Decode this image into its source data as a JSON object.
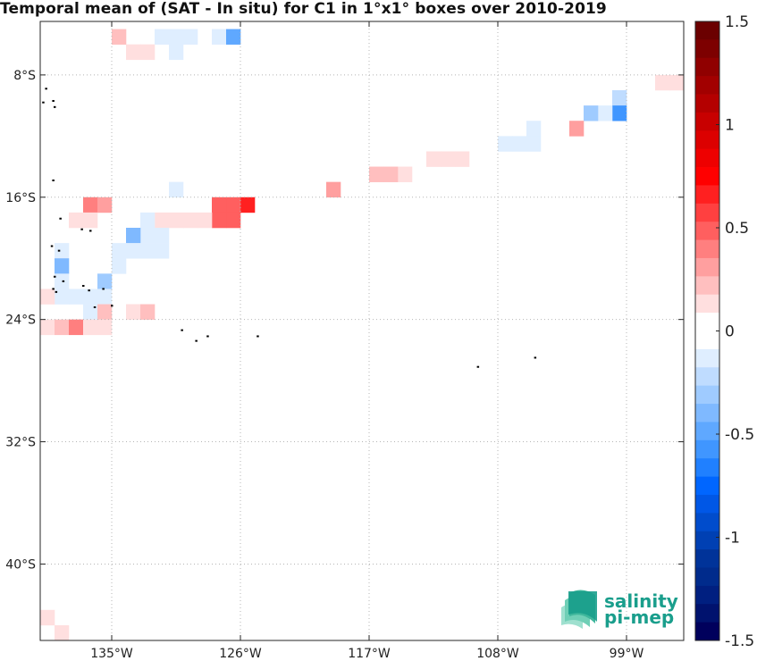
{
  "title": "Temporal mean of (SAT - In situ) for C1 in 1°x1° boxes over 2010-2019",
  "map": {
    "lon_range": [
      -140,
      -95
    ],
    "lat_range": [
      -45,
      -4.5
    ],
    "lon_ticks": [
      {
        "value": -135,
        "label": "135°W"
      },
      {
        "value": -126,
        "label": "126°W"
      },
      {
        "value": -117,
        "label": "117°W"
      },
      {
        "value": -108,
        "label": "108°W"
      },
      {
        "value": -99,
        "label": "99°W"
      }
    ],
    "lat_ticks": [
      {
        "value": -8,
        "label": "8°S"
      },
      {
        "value": -16,
        "label": "16°S"
      },
      {
        "value": -24,
        "label": "24°S"
      },
      {
        "value": -32,
        "label": "32°S"
      },
      {
        "value": -40,
        "label": "40°S"
      }
    ],
    "grid": true,
    "cells": [
      {
        "lon": -134.5,
        "lat": -5.5,
        "v": 0.25
      },
      {
        "lon": -133.5,
        "lat": -6.5,
        "v": 0.15
      },
      {
        "lon": -132.5,
        "lat": -6.5,
        "v": 0.15
      },
      {
        "lon": -131.5,
        "lat": -5.5,
        "v": -0.1
      },
      {
        "lon": -130.5,
        "lat": -5.5,
        "v": -0.1
      },
      {
        "lon": -129.5,
        "lat": -5.5,
        "v": -0.1
      },
      {
        "lon": -130.5,
        "lat": -6.5,
        "v": -0.1
      },
      {
        "lon": -127.5,
        "lat": -5.5,
        "v": -0.1
      },
      {
        "lon": -126.5,
        "lat": -5.5,
        "v": -0.5
      },
      {
        "lon": -95.5,
        "lat": -8.5,
        "v": 0.15
      },
      {
        "lon": -96.5,
        "lat": -8.5,
        "v": 0.15
      },
      {
        "lon": -99.5,
        "lat": -9.5,
        "v": -0.2
      },
      {
        "lon": -99.5,
        "lat": -10.5,
        "v": -0.6
      },
      {
        "lon": -100.5,
        "lat": -10.5,
        "v": -0.15
      },
      {
        "lon": -101.5,
        "lat": -10.5,
        "v": -0.3
      },
      {
        "lon": -102.5,
        "lat": -11.5,
        "v": 0.35
      },
      {
        "lon": -105.5,
        "lat": -11.5,
        "v": -0.1
      },
      {
        "lon": -106.5,
        "lat": -12.5,
        "v": -0.1
      },
      {
        "lon": -105.5,
        "lat": -12.5,
        "v": -0.1
      },
      {
        "lon": -107.5,
        "lat": -12.5,
        "v": -0.1
      },
      {
        "lon": -110.5,
        "lat": -13.5,
        "v": 0.15
      },
      {
        "lon": -111.5,
        "lat": -13.5,
        "v": 0.15
      },
      {
        "lon": -112.5,
        "lat": -13.5,
        "v": 0.15
      },
      {
        "lon": -114.5,
        "lat": -14.5,
        "v": 0.1
      },
      {
        "lon": -115.5,
        "lat": -14.5,
        "v": 0.25
      },
      {
        "lon": -116.5,
        "lat": -14.5,
        "v": 0.25
      },
      {
        "lon": -119.5,
        "lat": -15.5,
        "v": 0.3
      },
      {
        "lon": -130.5,
        "lat": -15.5,
        "v": -0.1
      },
      {
        "lon": -125.5,
        "lat": -16.5,
        "v": 0.7
      },
      {
        "lon": -126.5,
        "lat": -16.5,
        "v": 0.5
      },
      {
        "lon": -127.5,
        "lat": -16.5,
        "v": 0.5
      },
      {
        "lon": -126.5,
        "lat": -17.5,
        "v": 0.5
      },
      {
        "lon": -127.5,
        "lat": -17.5,
        "v": 0.5
      },
      {
        "lon": -128.5,
        "lat": -17.5,
        "v": 0.1
      },
      {
        "lon": -129.5,
        "lat": -17.5,
        "v": 0.1
      },
      {
        "lon": -130.5,
        "lat": -17.5,
        "v": 0.1
      },
      {
        "lon": -131.5,
        "lat": -17.5,
        "v": 0.1
      },
      {
        "lon": -136.5,
        "lat": -16.5,
        "v": 0.4
      },
      {
        "lon": -135.5,
        "lat": -16.5,
        "v": 0.3
      },
      {
        "lon": -137.5,
        "lat": -17.5,
        "v": 0.15
      },
      {
        "lon": -136.5,
        "lat": -17.5,
        "v": 0.15
      },
      {
        "lon": -132.5,
        "lat": -17.5,
        "v": -0.1
      },
      {
        "lon": -131.5,
        "lat": -18.5,
        "v": -0.1
      },
      {
        "lon": -132.5,
        "lat": -18.5,
        "v": -0.1
      },
      {
        "lon": -133.5,
        "lat": -18.5,
        "v": -0.4
      },
      {
        "lon": -131.5,
        "lat": -19.5,
        "v": -0.1
      },
      {
        "lon": -132.5,
        "lat": -19.5,
        "v": -0.1
      },
      {
        "lon": -133.5,
        "lat": -19.5,
        "v": -0.1
      },
      {
        "lon": -134.5,
        "lat": -19.5,
        "v": -0.1
      },
      {
        "lon": -134.5,
        "lat": -20.5,
        "v": -0.1
      },
      {
        "lon": -138.5,
        "lat": -19.5,
        "v": -0.1
      },
      {
        "lon": -138.5,
        "lat": -20.5,
        "v": -0.4
      },
      {
        "lon": -138.5,
        "lat": -21.5,
        "v": -0.1
      },
      {
        "lon": -135.5,
        "lat": -21.5,
        "v": -0.35
      },
      {
        "lon": -135.5,
        "lat": -22.5,
        "v": -0.1
      },
      {
        "lon": -136.5,
        "lat": -22.5,
        "v": -0.1
      },
      {
        "lon": -136.5,
        "lat": -23.5,
        "v": -0.1
      },
      {
        "lon": -137.5,
        "lat": -22.5,
        "v": -0.1
      },
      {
        "lon": -138.5,
        "lat": -22.5,
        "v": -0.1
      },
      {
        "lon": -139.5,
        "lat": -22.5,
        "v": 0.15
      },
      {
        "lon": -135.5,
        "lat": -23.5,
        "v": 0.25
      },
      {
        "lon": -133.5,
        "lat": -23.5,
        "v": 0.15
      },
      {
        "lon": -132.5,
        "lat": -23.5,
        "v": 0.25
      },
      {
        "lon": -139.5,
        "lat": -24.5,
        "v": 0.15
      },
      {
        "lon": -138.5,
        "lat": -24.5,
        "v": 0.25
      },
      {
        "lon": -137.5,
        "lat": -24.5,
        "v": 0.4
      },
      {
        "lon": -136.5,
        "lat": -24.5,
        "v": 0.15
      },
      {
        "lon": -135.5,
        "lat": -24.5,
        "v": 0.15
      },
      {
        "lon": -138.5,
        "lat": -44.5,
        "v": 0.15
      },
      {
        "lon": -139.5,
        "lat": -43.5,
        "v": 0.15
      }
    ],
    "islands": [
      {
        "lon": -139.6,
        "lat": -8.9
      },
      {
        "lon": -139.1,
        "lat": -9.7
      },
      {
        "lon": -139.0,
        "lat": -10.1
      },
      {
        "lon": -139.8,
        "lat": -9.8
      },
      {
        "lon": -139.1,
        "lat": -14.9
      },
      {
        "lon": -138.6,
        "lat": -17.4
      },
      {
        "lon": -137.1,
        "lat": -18.1
      },
      {
        "lon": -136.5,
        "lat": -18.2
      },
      {
        "lon": -139.2,
        "lat": -19.2
      },
      {
        "lon": -138.7,
        "lat": -19.5
      },
      {
        "lon": -139.0,
        "lat": -21.2
      },
      {
        "lon": -138.4,
        "lat": -21.5
      },
      {
        "lon": -137.0,
        "lat": -21.8
      },
      {
        "lon": -136.6,
        "lat": -22.1
      },
      {
        "lon": -135.6,
        "lat": -22.0
      },
      {
        "lon": -139.1,
        "lat": -22.0
      },
      {
        "lon": -138.9,
        "lat": -22.2
      },
      {
        "lon": -135.0,
        "lat": -23.1
      },
      {
        "lon": -136.2,
        "lat": -23.2
      },
      {
        "lon": -130.1,
        "lat": -24.7
      },
      {
        "lon": -128.3,
        "lat": -25.1
      },
      {
        "lon": -129.1,
        "lat": -25.4
      },
      {
        "lon": -124.8,
        "lat": -25.1
      },
      {
        "lon": -109.4,
        "lat": -27.1
      },
      {
        "lon": -105.4,
        "lat": -26.5
      }
    ]
  },
  "colorbar": {
    "range": [
      -1.5,
      1.5
    ],
    "ticks": [
      {
        "value": 1.5,
        "label": "1.5"
      },
      {
        "value": 1,
        "label": "1"
      },
      {
        "value": 0.5,
        "label": "0.5"
      },
      {
        "value": 0,
        "label": "0"
      },
      {
        "value": -0.5,
        "label": "-0.5"
      },
      {
        "value": -1,
        "label": "-1"
      },
      {
        "value": -1.5,
        "label": "-1.5"
      }
    ],
    "colors_top_to_bottom": [
      "#6b0000",
      "#7d0000",
      "#900000",
      "#a20000",
      "#b40000",
      "#c80000",
      "#dc0000",
      "#ee0000",
      "#ff0000",
      "#ff2020",
      "#ff4040",
      "#ff5f5f",
      "#ff7f7f",
      "#ff9f9f",
      "#ffbfbf",
      "#ffdfdf",
      "#ffffff",
      "#ffffff",
      "#dfeeff",
      "#bfdcff",
      "#9fcbff",
      "#7fb9ff",
      "#5fa8ff",
      "#4096ff",
      "#2080ff",
      "#0066ff",
      "#0057e6",
      "#004ccc",
      "#0040b3",
      "#003399",
      "#002b8c",
      "#001f80",
      "#00126e",
      "#00005c"
    ]
  },
  "logo": {
    "line1": "salinity",
    "line2": "pi-mep",
    "color": "#1a9e8c"
  }
}
